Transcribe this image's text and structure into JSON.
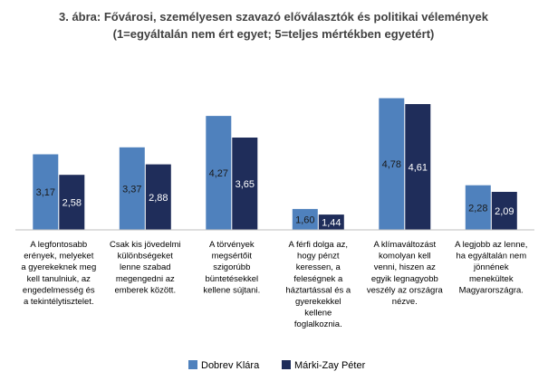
{
  "chart_data": {
    "type": "bar",
    "title": "3. ábra: Fővárosi, személyesen szavazó előválasztók és politikai vélemények",
    "subtitle": "(1=egyáltalán nem ért egyet; 5=teljes mértékben egyetért)",
    "ylim": [
      1,
      5
    ],
    "grid": false,
    "legend_position": "bottom",
    "categories": [
      [
        "A legfontosabb",
        "erények, melyeket",
        "a gyerekeknek meg",
        "kell tanulniuk, az",
        "engedelmesség és",
        "a tekintélytisztelet."
      ],
      [
        "Csak kis jövedelmi",
        "különbségeket",
        "lenne szabad",
        "megengedni az",
        "emberek között."
      ],
      [
        "A törvények",
        "megsértőit",
        "szigorúbb",
        "büntetésekkel",
        "kellene sújtani."
      ],
      [
        "A férfi dolga az,",
        "hogy pénzt",
        "keressen, a",
        "feleségnek a",
        "háztartással és a",
        "gyerekekkel",
        "kellene",
        "foglalkoznia."
      ],
      [
        "A klímaváltozást",
        "komolyan kell",
        "venni, hiszen az",
        "egyik legnagyobb",
        "veszély az országra",
        "nézve."
      ],
      [
        "A legjobb az lenne,",
        "ha egyáltalán nem",
        "jönnének",
        "menekültek",
        "Magyarországra."
      ]
    ],
    "series": [
      {
        "name": "Dobrev Klára",
        "color": "#4f81bd",
        "values": [
          3.17,
          3.37,
          4.27,
          1.6,
          4.78,
          2.28
        ],
        "labels": [
          "3,17",
          "3,37",
          "4,27",
          "1,60",
          "4,78",
          "2,28"
        ]
      },
      {
        "name": "Márki-Zay Péter",
        "color": "#1f2d5a",
        "values": [
          2.58,
          2.88,
          3.65,
          1.44,
          4.61,
          2.09
        ],
        "labels": [
          "2,58",
          "2,88",
          "3,65",
          "1,44",
          "4,61",
          "2,09"
        ]
      }
    ]
  }
}
